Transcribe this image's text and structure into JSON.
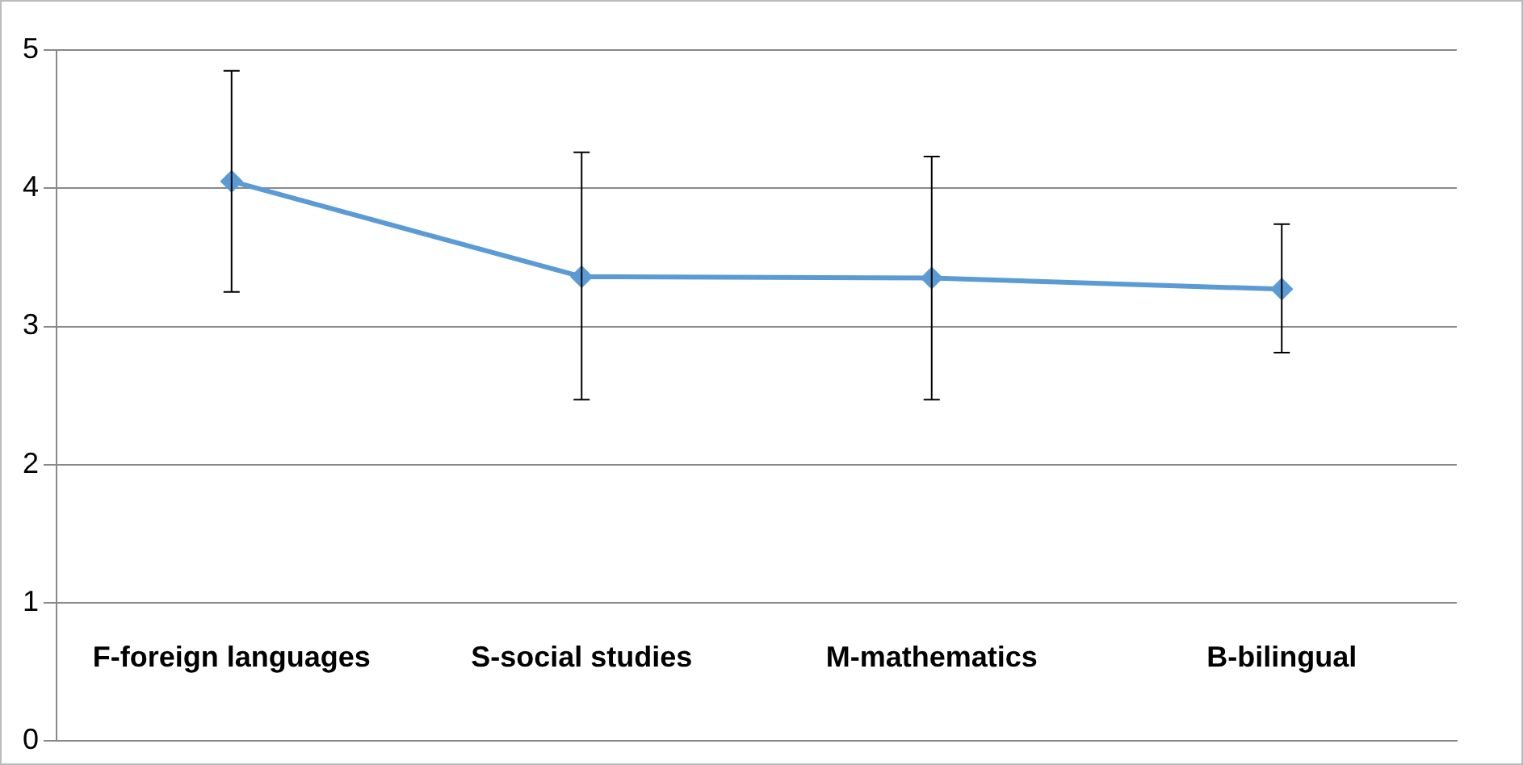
{
  "chart_data": {
    "type": "line",
    "categories": [
      "F-foreign languages",
      "S-social studies",
      "M-mathematics",
      "B-bilingual"
    ],
    "series": [
      {
        "color": "#5b9bd5",
        "values": [
          4.05,
          3.36,
          3.35,
          3.27
        ],
        "errors": [
          [
            3.25,
            4.85
          ],
          [
            2.47,
            4.26
          ],
          [
            2.47,
            4.23
          ],
          [
            2.81,
            3.74
          ]
        ]
      }
    ],
    "ylim": [
      0,
      5
    ],
    "yticks": [
      0,
      1,
      2,
      3,
      4,
      5
    ],
    "grid": "y",
    "legend": false,
    "marker": "diamond",
    "line_style": "solid"
  }
}
